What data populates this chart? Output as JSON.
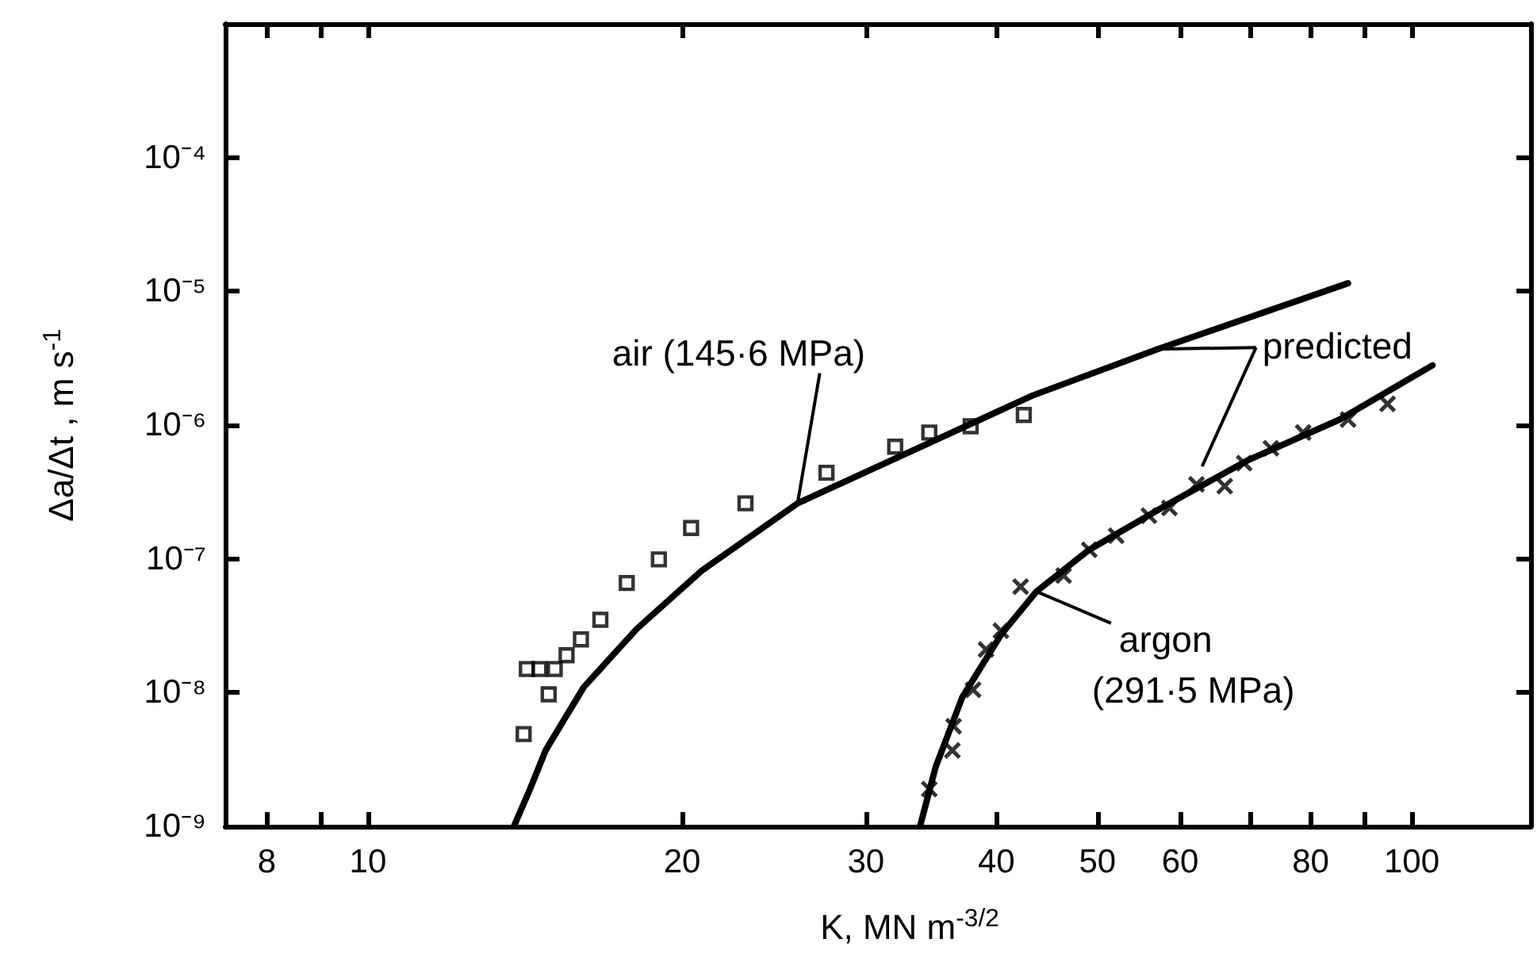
{
  "chart_data": {
    "type": "scatter",
    "xlabel": "K, MN m$^{-3/2}$",
    "ylabel": "Δa/Δt , m s$^{-1}$",
    "log": "xy",
    "xlim": [
      7.3,
      130
    ],
    "ylim": [
      1e-09,
      0.001
    ],
    "xticks": [
      8,
      {
        "value": 9,
        "label": null
      },
      10,
      20,
      30,
      40,
      50,
      60,
      {
        "value": 70,
        "label": null
      },
      80,
      {
        "value": 90,
        "label": null
      },
      100
    ],
    "yticks": [
      {
        "value": 1e-09,
        "label": "10⁻⁹"
      },
      {
        "value": 1e-08,
        "label": "10⁻⁸"
      },
      {
        "value": 1e-07,
        "label": "10⁻⁷"
      },
      {
        "value": 1e-06,
        "label": "10⁻⁶"
      },
      {
        "value": 1e-05,
        "label": "10⁻⁵"
      },
      {
        "value": 0.0001,
        "label": "10⁻⁴"
      }
    ],
    "series": [
      {
        "type": "scatter",
        "marker": "square",
        "color": "#000000",
        "x": [
          14.1,
          14.9,
          14.2,
          14.6,
          15.1,
          15.5,
          16.0,
          16.7,
          17.7,
          19.0,
          20.4,
          23.0,
          27.5,
          32.0,
          34.5,
          37.8,
          42.5
        ],
        "values": [
          4.9e-09,
          9.7e-09,
          1.5e-08,
          1.5e-08,
          1.5e-08,
          1.9e-08,
          2.5e-08,
          3.5e-08,
          6.6e-08,
          9.9e-08,
          1.7e-07,
          2.6e-07,
          4.4e-07,
          6.9e-07,
          8.8e-07,
          9.8e-07,
          1.19e-06
        ]
      },
      {
        "type": "line",
        "marker": "none",
        "color": "#000000",
        "x": [
          13.8,
          14.3,
          14.8,
          16.1,
          18.1,
          20.9,
          25.8,
          32.6,
          43.3,
          57.1,
          86.9
        ],
        "values": [
          1e-09,
          1.9e-09,
          3.7e-09,
          1.1e-08,
          3e-08,
          8.2e-08,
          2.6e-07,
          6e-07,
          1.66e-06,
          3.7e-06,
          1.15e-05
        ]
      },
      {
        "type": "scatter",
        "marker": "cross",
        "color": "#000000",
        "x": [
          34.5,
          36.3,
          36.4,
          38.0,
          39.1,
          40.4,
          42.2,
          46.4,
          49.1,
          52.1,
          56.0,
          58.6,
          62.2,
          66.2,
          69.1,
          73.3,
          78.7,
          86.9,
          94.8
        ],
        "values": [
          1.9e-09,
          3.7e-09,
          5.6e-09,
          1.05e-08,
          2.1e-08,
          2.9e-08,
          6.2e-08,
          7.5e-08,
          1.17e-07,
          1.49e-07,
          2.1e-07,
          2.4e-07,
          3.6e-07,
          3.5e-07,
          5.2e-07,
          6.7e-07,
          8.8e-07,
          1.1e-06,
          1.44e-06
        ]
      },
      {
        "type": "line",
        "marker": "none",
        "color": "#000000",
        "x": [
          33.8,
          35.0,
          37.1,
          40.4,
          43.7,
          49.1,
          58.6,
          69.8,
          85.3,
          104.7
        ],
        "values": [
          1e-09,
          2.8e-09,
          9.2e-09,
          2.7e-08,
          5.7e-08,
          1.17e-07,
          2.6e-07,
          5.5e-07,
          1.1e-06,
          2.8e-06
        ]
      }
    ],
    "annotations": [
      {
        "text": "air (145·6 MPa)",
        "x": 25.8,
        "y": 2.6e-07
      },
      {
        "text": "predicted",
        "x": 57.1,
        "y": 3.7e-06
      },
      {
        "text": "argon\n(291·5 MPa)",
        "x": 43.7,
        "y": 5.7e-08
      }
    ]
  }
}
